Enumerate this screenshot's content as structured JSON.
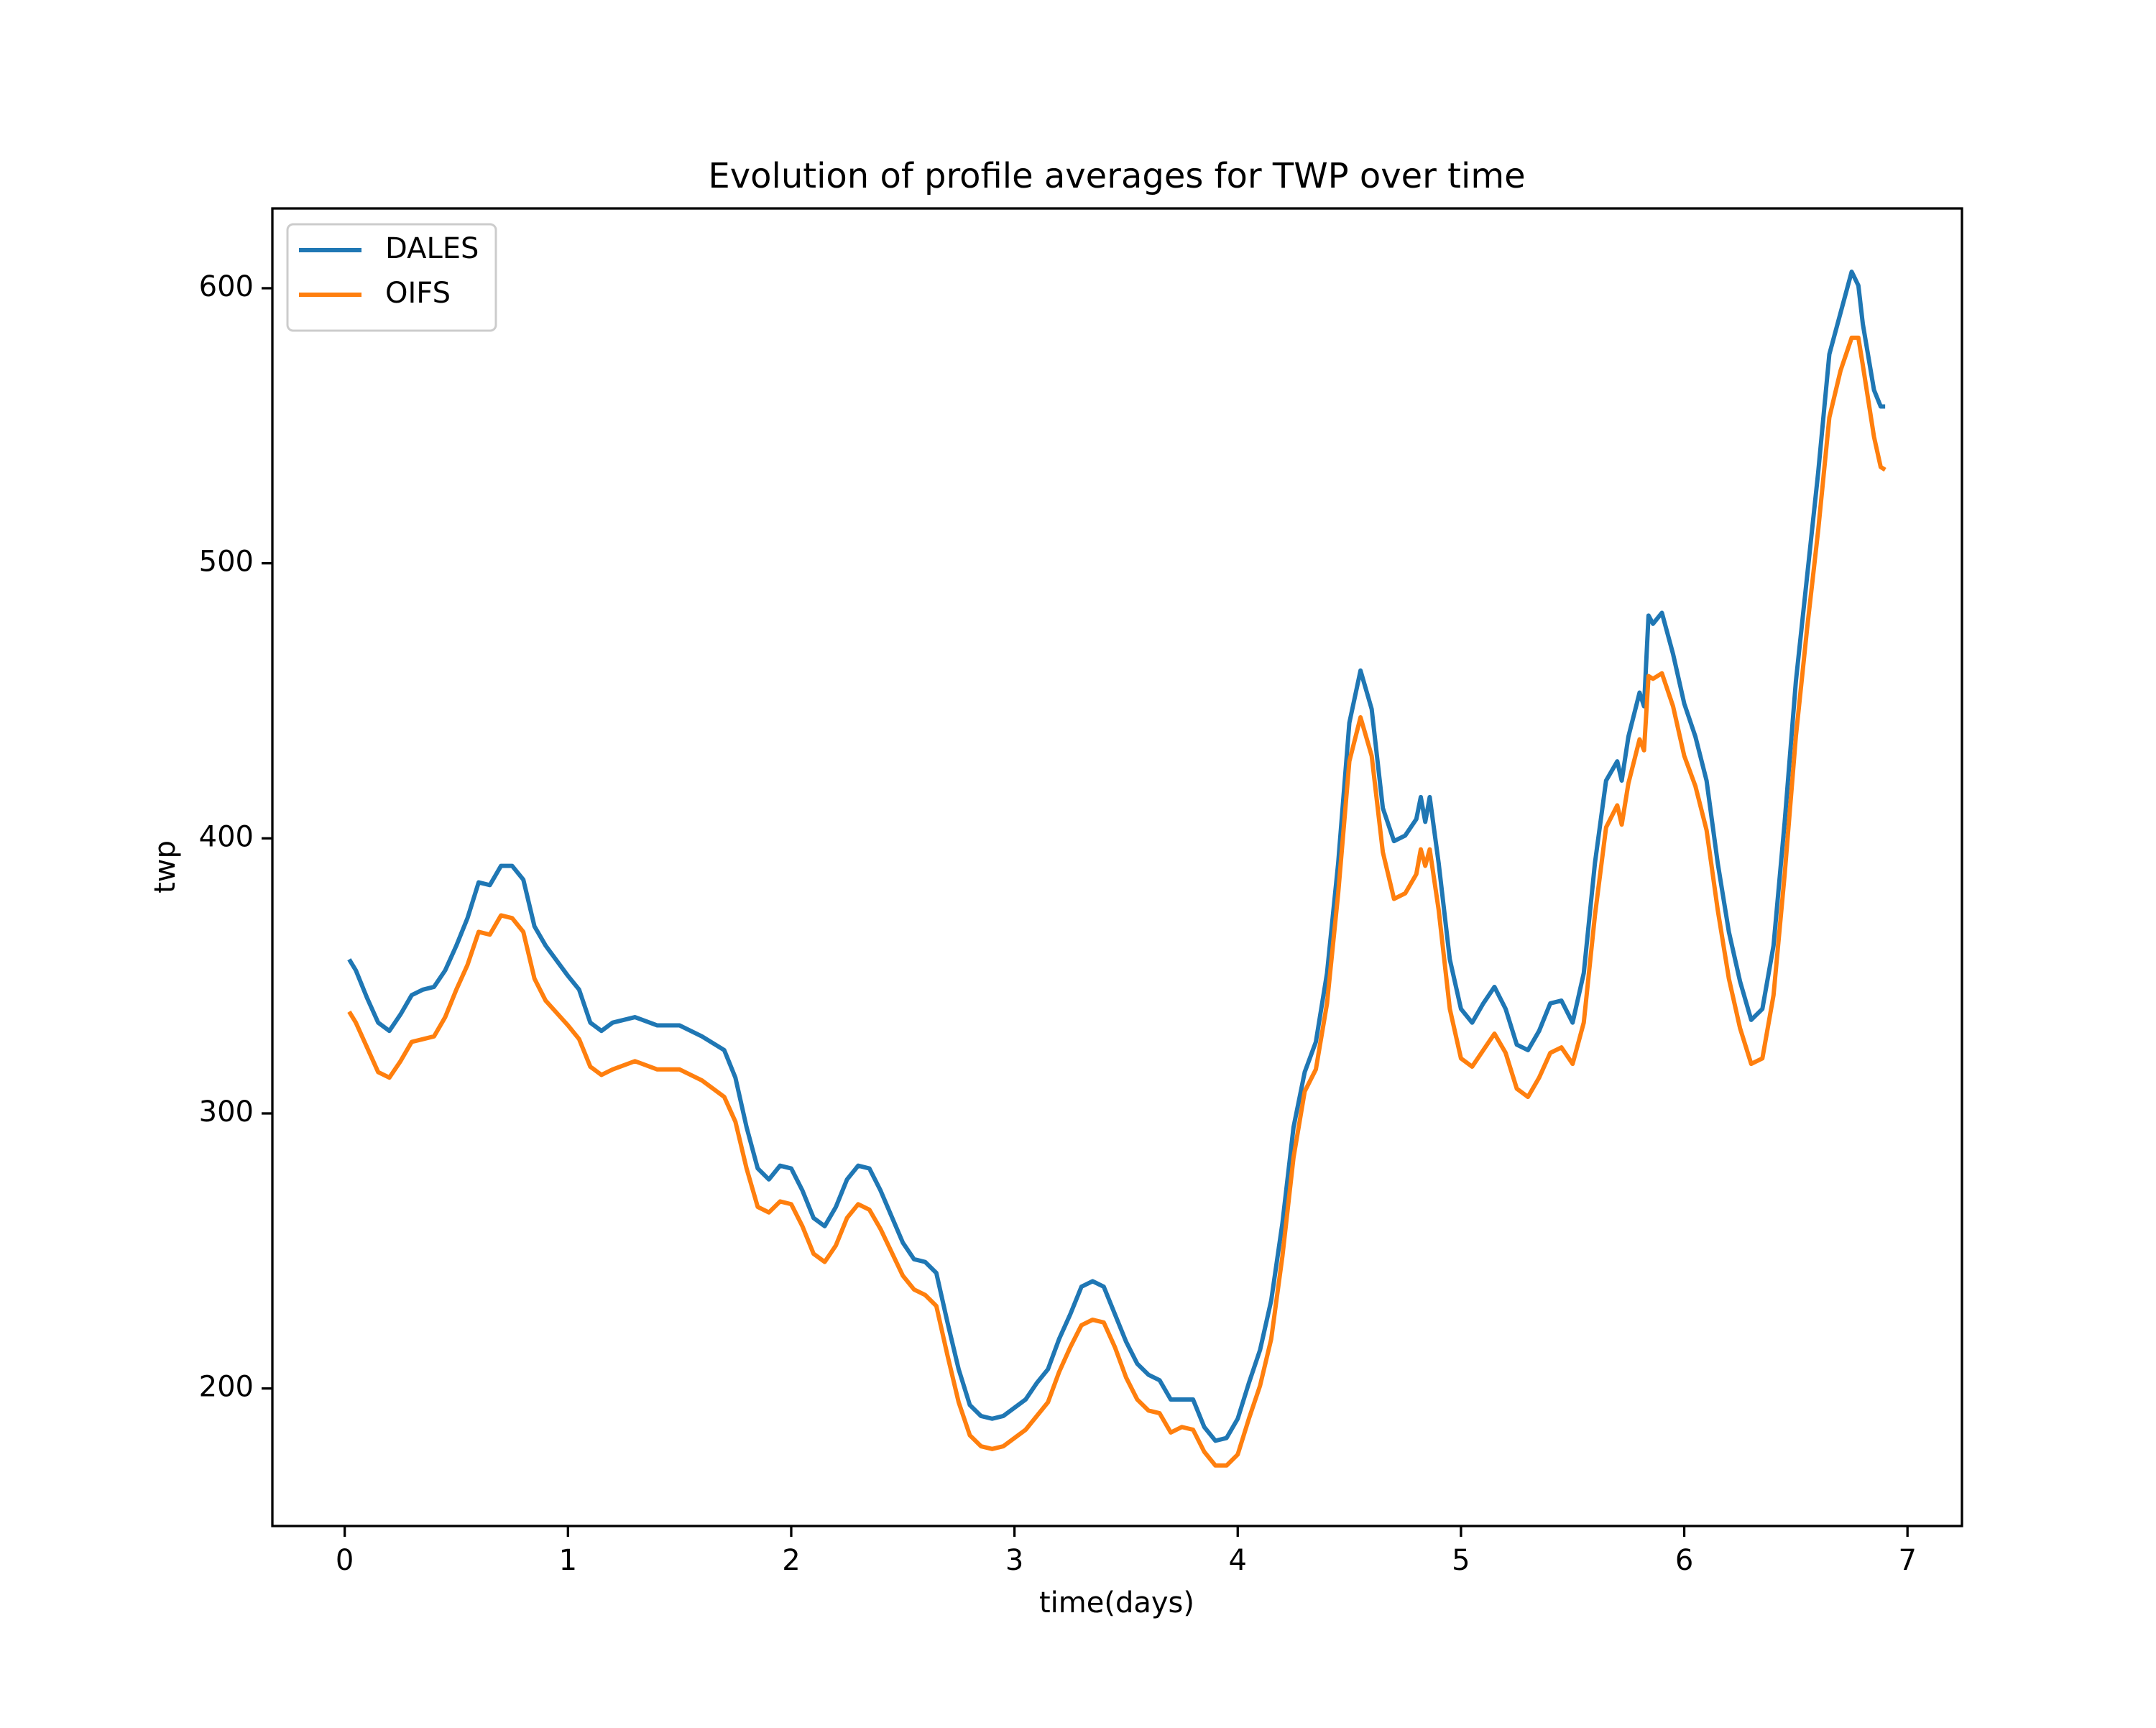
{
  "chart_data": {
    "type": "line",
    "title": "Evolution of profile averages for TWP over time",
    "x_label": "time(days)",
    "y_label": "twp",
    "x": [
      0.02,
      0.05,
      0.1,
      0.15,
      0.2,
      0.25,
      0.3,
      0.35,
      0.4,
      0.45,
      0.5,
      0.55,
      0.6,
      0.65,
      0.7,
      0.75,
      0.8,
      0.85,
      0.9,
      1.0,
      1.05,
      1.1,
      1.15,
      1.2,
      1.3,
      1.4,
      1.5,
      1.6,
      1.7,
      1.75,
      1.8,
      1.85,
      1.9,
      1.95,
      2.0,
      2.05,
      2.1,
      2.15,
      2.2,
      2.25,
      2.3,
      2.35,
      2.4,
      2.5,
      2.55,
      2.6,
      2.65,
      2.7,
      2.75,
      2.8,
      2.85,
      2.9,
      2.95,
      3.0,
      3.05,
      3.1,
      3.15,
      3.2,
      3.25,
      3.3,
      3.35,
      3.4,
      3.45,
      3.5,
      3.55,
      3.6,
      3.65,
      3.7,
      3.75,
      3.8,
      3.85,
      3.9,
      3.95,
      4.0,
      4.05,
      4.1,
      4.15,
      4.2,
      4.25,
      4.3,
      4.35,
      4.4,
      4.45,
      4.5,
      4.55,
      4.6,
      4.65,
      4.7,
      4.75,
      4.8,
      4.82,
      4.84,
      4.86,
      4.9,
      4.95,
      5.0,
      5.05,
      5.1,
      5.15,
      5.2,
      5.25,
      5.3,
      5.35,
      5.4,
      5.45,
      5.5,
      5.55,
      5.6,
      5.65,
      5.7,
      5.72,
      5.75,
      5.8,
      5.82,
      5.84,
      5.86,
      5.9,
      5.95,
      6.0,
      6.05,
      6.1,
      6.15,
      6.2,
      6.25,
      6.3,
      6.35,
      6.4,
      6.45,
      6.5,
      6.55,
      6.6,
      6.65,
      6.7,
      6.75,
      6.78,
      6.8,
      6.85,
      6.88,
      6.9
    ],
    "series": [
      {
        "name": "DALES",
        "color": "#1f77b4",
        "values": [
          356,
          352,
          342,
          333,
          330,
          336,
          343,
          345,
          346,
          352,
          361,
          371,
          384,
          383,
          390,
          390,
          385,
          368,
          361,
          350,
          345,
          333,
          330,
          333,
          335,
          332,
          332,
          328,
          323,
          313,
          295,
          280,
          276,
          281,
          280,
          272,
          262,
          259,
          266,
          276,
          281,
          280,
          272,
          253,
          247,
          246,
          242,
          224,
          207,
          194,
          190,
          189,
          190,
          193,
          196,
          202,
          207,
          218,
          227,
          237,
          239,
          237,
          227,
          217,
          209,
          205,
          203,
          196,
          196,
          196,
          186,
          181,
          182,
          189,
          202,
          214,
          232,
          260,
          295,
          315,
          326,
          351,
          391,
          442,
          461,
          447,
          411,
          399,
          401,
          407,
          415,
          406,
          415,
          391,
          356,
          338,
          333,
          340,
          346,
          338,
          325,
          323,
          330,
          340,
          341,
          333,
          351,
          391,
          421,
          428,
          421,
          437,
          453,
          448,
          481,
          478,
          482,
          467,
          449,
          437,
          421,
          391,
          366,
          348,
          334,
          338,
          361,
          406,
          457,
          495,
          533,
          576,
          591,
          606,
          601,
          587,
          563,
          557,
          557
        ]
      },
      {
        "name": "OIFS",
        "color": "#ff7f0e",
        "values": [
          337,
          333,
          324,
          315,
          313,
          319,
          326,
          327,
          328,
          335,
          345,
          354,
          366,
          365,
          372,
          371,
          366,
          349,
          341,
          332,
          327,
          317,
          314,
          316,
          319,
          316,
          316,
          312,
          306,
          297,
          280,
          266,
          264,
          268,
          267,
          259,
          249,
          246,
          252,
          262,
          267,
          265,
          258,
          241,
          236,
          234,
          230,
          212,
          195,
          183,
          179,
          178,
          179,
          182,
          185,
          190,
          195,
          206,
          215,
          223,
          225,
          224,
          215,
          204,
          196,
          192,
          191,
          184,
          186,
          185,
          177,
          172,
          172,
          176,
          189,
          201,
          218,
          248,
          284,
          308,
          316,
          340,
          380,
          428,
          444,
          430,
          395,
          378,
          380,
          387,
          396,
          390,
          396,
          374,
          338,
          320,
          317,
          323,
          329,
          322,
          309,
          306,
          313,
          322,
          324,
          318,
          333,
          372,
          404,
          412,
          405,
          420,
          436,
          432,
          459,
          458,
          460,
          448,
          430,
          419,
          403,
          374,
          349,
          331,
          318,
          320,
          343,
          387,
          437,
          476,
          512,
          553,
          570,
          582,
          582,
          572,
          546,
          535,
          534
        ]
      }
    ],
    "xlim": [
      -0.324,
      7.244
    ],
    "ylim": [
      150,
      629
    ],
    "xticks": [
      0,
      1,
      2,
      3,
      4,
      5,
      6,
      7
    ],
    "yticks": [
      200,
      300,
      400,
      500,
      600
    ],
    "legend": "upper left",
    "grid": false
  }
}
